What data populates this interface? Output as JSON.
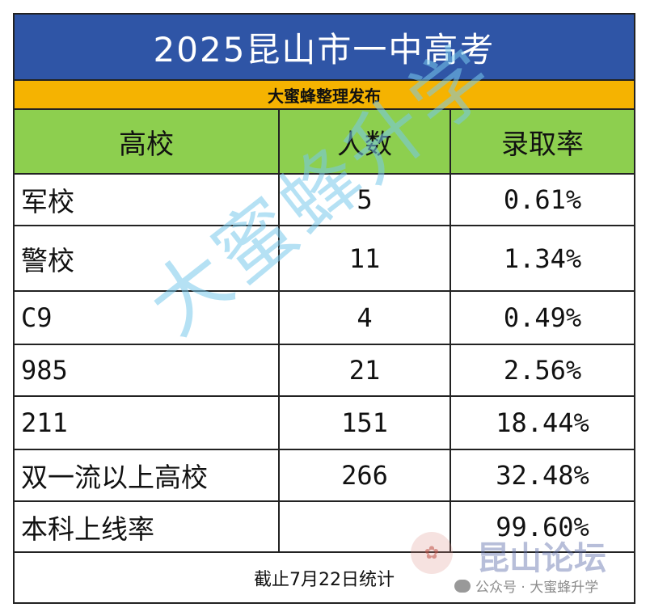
{
  "title": "2025昆山市一中高考",
  "subtitle": "大蜜蜂整理发布",
  "headers": [
    "高校",
    "人数",
    "录取率"
  ],
  "rows": [
    {
      "school": "军校",
      "count": "5",
      "rate": "0.61%"
    },
    {
      "school": "警校",
      "count": "11",
      "rate": "1.34%"
    },
    {
      "school": "C9",
      "count": "4",
      "rate": "0.49%"
    },
    {
      "school": "985",
      "count": "21",
      "rate": "2.56%"
    },
    {
      "school": "211",
      "count": "151",
      "rate": "18.44%"
    },
    {
      "school": "双一流以上高校",
      "count": "266",
      "rate": "32.48%"
    },
    {
      "school": "本科上线率",
      "count": "",
      "rate": "99.60%"
    }
  ],
  "footer": "截止7月22日统计",
  "watermark": "大蜜蜂升学",
  "forum_watermark": "昆山论坛",
  "account_watermark": "公众号 · 大蜜蜂升学",
  "colors": {
    "title_bg": "#2f55a6",
    "subtitle_bg": "#f5b301",
    "header_bg": "#8dcf4f"
  }
}
